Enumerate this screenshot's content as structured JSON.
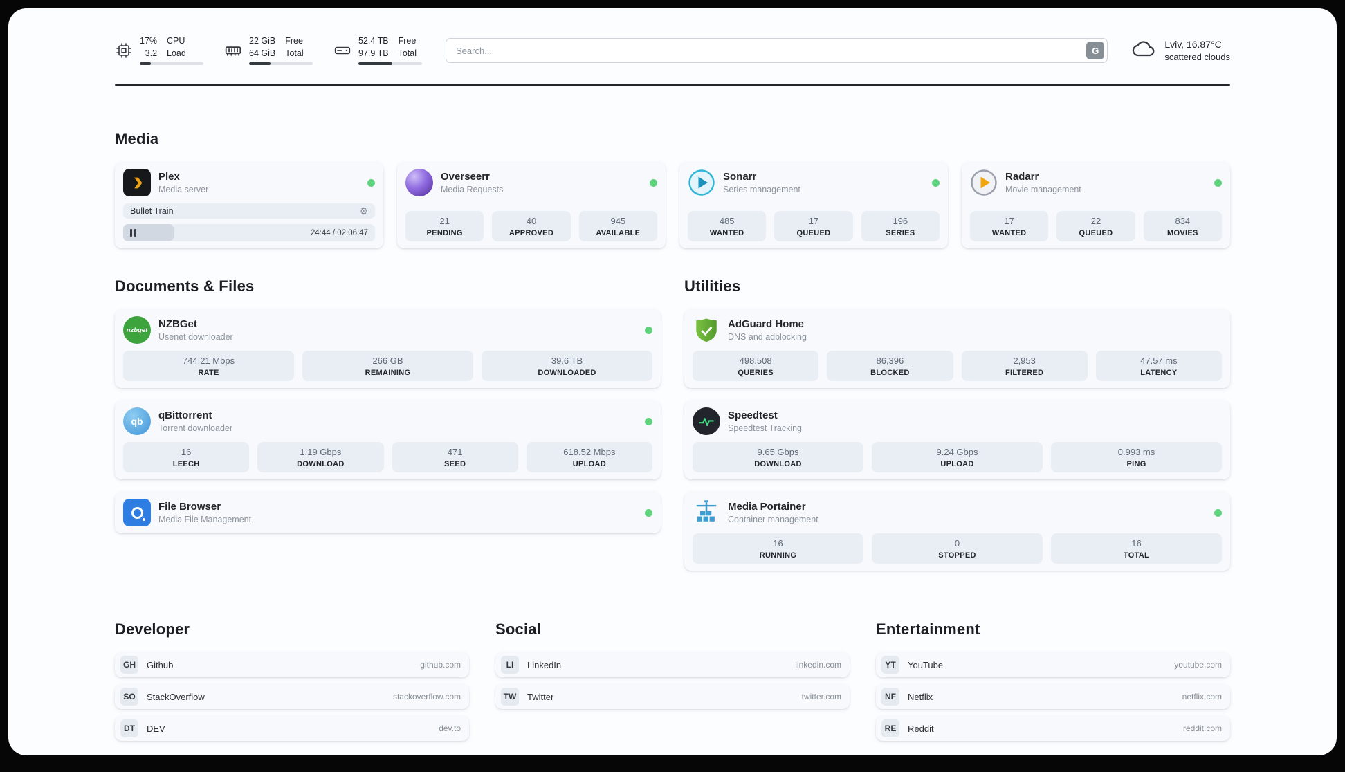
{
  "colors": {
    "status_online": "#5fd37d",
    "page_background": "#fcfdff",
    "card_background": "#f8f9fc",
    "stat_background": "#e9edf4",
    "plex_accent": "#e8a117",
    "adguard_green": "#6ab53a"
  },
  "icons": {
    "cpu": "chip-icon",
    "memory": "ram-icon",
    "disk": "hard-drive-icon",
    "search_engine": "google-g-button",
    "weather": "cloud-icon",
    "gear": "gear-icon",
    "pause": "pause-icon",
    "status": "green-status-dot"
  },
  "header": {
    "cpu": {
      "value1": "17%",
      "value2": "3.2",
      "label1": "CPU",
      "label2": "Load",
      "bar_percent": 17
    },
    "memory": {
      "value1": "22 GiB",
      "value2": "64 GiB",
      "label1": "Free",
      "label2": "Total",
      "bar_percent": 34
    },
    "disk": {
      "value1": "52.4 TB",
      "value2": "97.9 TB",
      "label1": "Free",
      "label2": "Total",
      "bar_percent": 53
    },
    "search": {
      "placeholder": "Search...",
      "engine_button": "G"
    },
    "weather": {
      "location": "Lviv, 16.87°C",
      "condition": "scattered clouds"
    }
  },
  "media": {
    "title": "Media",
    "plex": {
      "name": "Plex",
      "subtitle": "Media server",
      "icon": "plex-icon",
      "now_playing": "Bullet Train",
      "time": "24:44 / 02:06:47",
      "progress_percent": 20
    },
    "overseerr": {
      "name": "Overseerr",
      "subtitle": "Media Requests",
      "icon": "overseerr-icon",
      "stats": [
        {
          "value": "21",
          "label": "PENDING"
        },
        {
          "value": "40",
          "label": "APPROVED"
        },
        {
          "value": "945",
          "label": "AVAILABLE"
        }
      ]
    },
    "sonarr": {
      "name": "Sonarr",
      "subtitle": "Series management",
      "icon": "sonarr-icon",
      "stats": [
        {
          "value": "485",
          "label": "WANTED"
        },
        {
          "value": "17",
          "label": "QUEUED"
        },
        {
          "value": "196",
          "label": "SERIES"
        }
      ]
    },
    "radarr": {
      "name": "Radarr",
      "subtitle": "Movie management",
      "icon": "radarr-icon",
      "stats": [
        {
          "value": "17",
          "label": "WANTED"
        },
        {
          "value": "22",
          "label": "QUEUED"
        },
        {
          "value": "834",
          "label": "MOVIES"
        }
      ]
    }
  },
  "documents": {
    "title": "Documents & Files",
    "nzbget": {
      "name": "NZBGet",
      "subtitle": "Usenet downloader",
      "icon": "nzbget-icon",
      "icon_text": "nzbget",
      "stats": [
        {
          "value": "744.21 Mbps",
          "label": "RATE"
        },
        {
          "value": "266 GB",
          "label": "REMAINING"
        },
        {
          "value": "39.6 TB",
          "label": "DOWNLOADED"
        }
      ]
    },
    "qbittorrent": {
      "name": "qBittorrent",
      "subtitle": "Torrent downloader",
      "icon": "qbittorrent-icon",
      "icon_text": "qb",
      "stats": [
        {
          "value": "16",
          "label": "LEECH"
        },
        {
          "value": "1.19 Gbps",
          "label": "DOWNLOAD"
        },
        {
          "value": "471",
          "label": "SEED"
        },
        {
          "value": "618.52 Mbps",
          "label": "UPLOAD"
        }
      ]
    },
    "filebrowser": {
      "name": "File Browser",
      "subtitle": "Media File Management",
      "icon": "filebrowser-icon"
    }
  },
  "utilities": {
    "title": "Utilities",
    "adguard": {
      "name": "AdGuard Home",
      "subtitle": "DNS and adblocking",
      "icon": "adguard-shield-icon",
      "stats": [
        {
          "value": "498,508",
          "label": "QUERIES"
        },
        {
          "value": "86,396",
          "label": "BLOCKED"
        },
        {
          "value": "2,953",
          "label": "FILTERED"
        },
        {
          "value": "47.57 ms",
          "label": "LATENCY"
        }
      ]
    },
    "speedtest": {
      "name": "Speedtest",
      "subtitle": "Speedtest Tracking",
      "icon": "speedtest-icon",
      "stats": [
        {
          "value": "9.65 Gbps",
          "label": "DOWNLOAD"
        },
        {
          "value": "9.24 Gbps",
          "label": "UPLOAD"
        },
        {
          "value": "0.993 ms",
          "label": "PING"
        }
      ]
    },
    "portainer": {
      "name": "Media Portainer",
      "subtitle": "Container management",
      "icon": "portainer-crane-icon",
      "stats": [
        {
          "value": "16",
          "label": "RUNNING"
        },
        {
          "value": "0",
          "label": "STOPPED"
        },
        {
          "value": "16",
          "label": "TOTAL"
        }
      ]
    }
  },
  "bookmarks": {
    "developer": {
      "title": "Developer",
      "items": [
        {
          "abbr": "GH",
          "name": "Github",
          "url": "github.com"
        },
        {
          "abbr": "SO",
          "name": "StackOverflow",
          "url": "stackoverflow.com"
        },
        {
          "abbr": "DT",
          "name": "DEV",
          "url": "dev.to"
        }
      ]
    },
    "social": {
      "title": "Social",
      "items": [
        {
          "abbr": "LI",
          "name": "LinkedIn",
          "url": "linkedin.com"
        },
        {
          "abbr": "TW",
          "name": "Twitter",
          "url": "twitter.com"
        }
      ]
    },
    "entertainment": {
      "title": "Entertainment",
      "items": [
        {
          "abbr": "YT",
          "name": "YouTube",
          "url": "youtube.com"
        },
        {
          "abbr": "NF",
          "name": "Netflix",
          "url": "netflix.com"
        },
        {
          "abbr": "RE",
          "name": "Reddit",
          "url": "reddit.com"
        }
      ]
    }
  }
}
